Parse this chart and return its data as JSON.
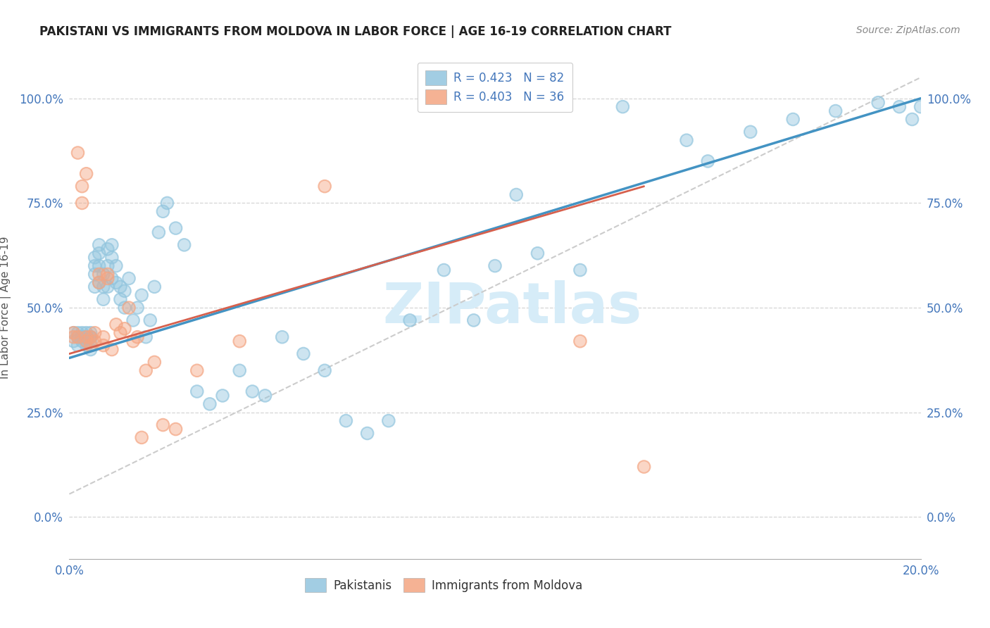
{
  "title": "PAKISTANI VS IMMIGRANTS FROM MOLDOVA IN LABOR FORCE | AGE 16-19 CORRELATION CHART",
  "source": "Source: ZipAtlas.com",
  "ylabel": "In Labor Force | Age 16-19",
  "xlim": [
    0.0,
    0.2
  ],
  "ylim": [
    -0.1,
    1.1
  ],
  "ytick_labels": [
    "0.0%",
    "25.0%",
    "50.0%",
    "75.0%",
    "100.0%"
  ],
  "ytick_vals": [
    0.0,
    0.25,
    0.5,
    0.75,
    1.0
  ],
  "xtick_vals": [
    0.0,
    0.02,
    0.04,
    0.06,
    0.08,
    0.1,
    0.12,
    0.14,
    0.16,
    0.18,
    0.2
  ],
  "legend_r_blue": "R = 0.423",
  "legend_n_blue": "N = 82",
  "legend_r_pink": "R = 0.403",
  "legend_n_pink": "N = 36",
  "blue_scatter_color": "#92c5de",
  "pink_scatter_color": "#f4a582",
  "blue_line_color": "#4393c3",
  "pink_line_color": "#d6604d",
  "dashed_line_color": "#cccccc",
  "watermark_color": "#d6ecf8",
  "blue_scatter_x": [
    0.001,
    0.001,
    0.002,
    0.002,
    0.002,
    0.003,
    0.003,
    0.003,
    0.003,
    0.004,
    0.004,
    0.004,
    0.004,
    0.005,
    0.005,
    0.005,
    0.005,
    0.005,
    0.006,
    0.006,
    0.006,
    0.006,
    0.007,
    0.007,
    0.007,
    0.007,
    0.008,
    0.008,
    0.008,
    0.009,
    0.009,
    0.009,
    0.01,
    0.01,
    0.01,
    0.011,
    0.011,
    0.012,
    0.012,
    0.013,
    0.013,
    0.014,
    0.015,
    0.016,
    0.017,
    0.018,
    0.019,
    0.02,
    0.021,
    0.022,
    0.023,
    0.025,
    0.027,
    0.03,
    0.033,
    0.036,
    0.04,
    0.043,
    0.046,
    0.05,
    0.055,
    0.06,
    0.065,
    0.07,
    0.075,
    0.08,
    0.088,
    0.095,
    0.1,
    0.11,
    0.12,
    0.13,
    0.145,
    0.16,
    0.17,
    0.18,
    0.19,
    0.195,
    0.198,
    0.2,
    0.105,
    0.15
  ],
  "blue_scatter_y": [
    0.42,
    0.44,
    0.43,
    0.44,
    0.41,
    0.42,
    0.43,
    0.44,
    0.43,
    0.42,
    0.44,
    0.43,
    0.41,
    0.42,
    0.43,
    0.44,
    0.4,
    0.43,
    0.55,
    0.58,
    0.6,
    0.62,
    0.56,
    0.6,
    0.63,
    0.65,
    0.55,
    0.58,
    0.52,
    0.6,
    0.64,
    0.55,
    0.65,
    0.57,
    0.62,
    0.56,
    0.6,
    0.52,
    0.55,
    0.5,
    0.54,
    0.57,
    0.47,
    0.5,
    0.53,
    0.43,
    0.47,
    0.55,
    0.68,
    0.73,
    0.75,
    0.69,
    0.65,
    0.3,
    0.27,
    0.29,
    0.35,
    0.3,
    0.29,
    0.43,
    0.39,
    0.35,
    0.23,
    0.2,
    0.23,
    0.47,
    0.59,
    0.47,
    0.6,
    0.63,
    0.59,
    0.98,
    0.9,
    0.92,
    0.95,
    0.97,
    0.99,
    0.98,
    0.95,
    0.98,
    0.77,
    0.85
  ],
  "pink_scatter_x": [
    0.001,
    0.001,
    0.002,
    0.002,
    0.003,
    0.003,
    0.004,
    0.004,
    0.004,
    0.005,
    0.005,
    0.006,
    0.006,
    0.007,
    0.007,
    0.008,
    0.008,
    0.009,
    0.009,
    0.01,
    0.011,
    0.012,
    0.013,
    0.014,
    0.015,
    0.016,
    0.017,
    0.018,
    0.02,
    0.022,
    0.025,
    0.03,
    0.04,
    0.06,
    0.12,
    0.135
  ],
  "pink_scatter_y": [
    0.43,
    0.44,
    0.87,
    0.43,
    0.79,
    0.75,
    0.82,
    0.43,
    0.42,
    0.43,
    0.41,
    0.44,
    0.42,
    0.56,
    0.58,
    0.43,
    0.41,
    0.57,
    0.58,
    0.4,
    0.46,
    0.44,
    0.45,
    0.5,
    0.42,
    0.43,
    0.19,
    0.35,
    0.37,
    0.22,
    0.21,
    0.35,
    0.42,
    0.79,
    0.42,
    0.12
  ],
  "blue_trendline_x": [
    0.0,
    0.2
  ],
  "blue_trendline_y": [
    0.38,
    1.0
  ],
  "pink_trendline_x": [
    0.0,
    0.135
  ],
  "pink_trendline_y": [
    0.39,
    0.79
  ],
  "dashed_line_x": [
    0.0,
    0.2
  ],
  "dashed_line_y": [
    0.055,
    1.05
  ],
  "background_color": "#ffffff",
  "grid_color": "#d5d5d5",
  "legend_label_blue": "Pakistanis",
  "legend_label_pink": "Immigrants from Moldova",
  "tick_color": "#4477bb",
  "label_color": "#555555",
  "title_color": "#222222"
}
